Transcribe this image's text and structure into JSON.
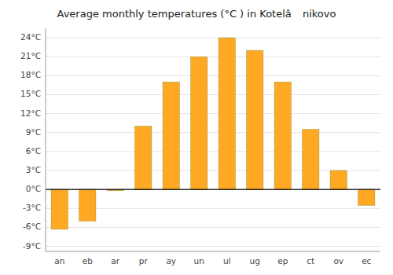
{
  "chart_data": {
    "type": "bar",
    "title": "Average monthly temperatures (°C ) in Kotelâ nikovo",
    "categories": [
      "an",
      "eb",
      "ar",
      "pr",
      "ay",
      "un",
      "ul",
      "ug",
      "ep",
      "ct",
      "ov",
      "ec"
    ],
    "values": [
      -6.3,
      -5.0,
      -0.2,
      10.0,
      17.0,
      21.0,
      24.0,
      22.0,
      17.0,
      9.5,
      3.0,
      -2.5
    ],
    "color": "#FFA824",
    "ylim": [
      -9.8,
      25.5
    ],
    "yticks": [
      {
        "value": -9,
        "label": "-9°C"
      },
      {
        "value": -6,
        "label": "-6°C"
      },
      {
        "value": -3,
        "label": "-3°C"
      },
      {
        "value": 0,
        "label": "0°C"
      },
      {
        "value": 3,
        "label": "3°C"
      },
      {
        "value": 6,
        "label": "6°C"
      },
      {
        "value": 9,
        "label": "9°C"
      },
      {
        "value": 12,
        "label": "12°C"
      },
      {
        "value": 15,
        "label": "15°C"
      },
      {
        "value": 18,
        "label": "18°C"
      },
      {
        "value": 21,
        "label": "21°C"
      },
      {
        "value": 24,
        "label": "24°C"
      }
    ],
    "grid": true
  }
}
